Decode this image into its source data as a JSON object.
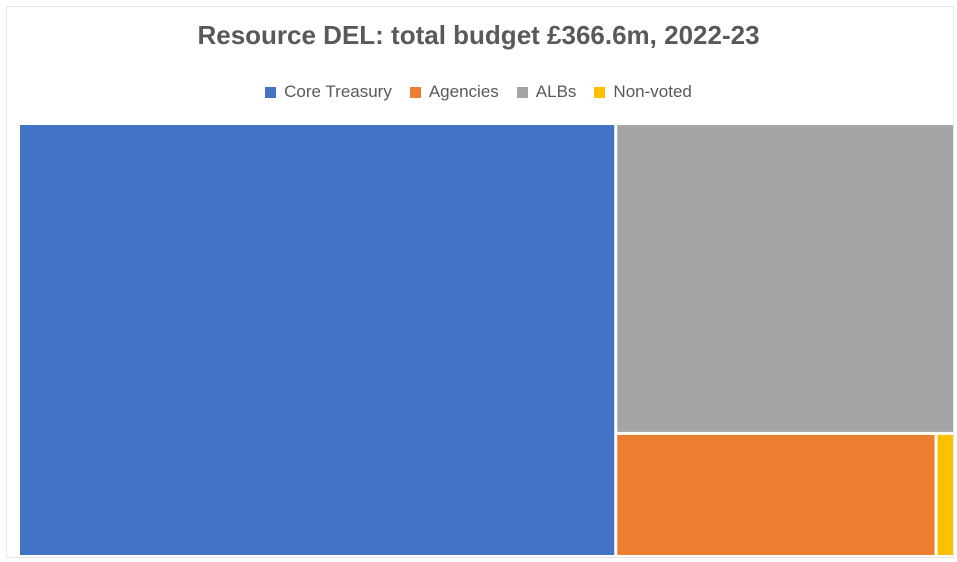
{
  "chart_data": {
    "type": "treemap",
    "title": "Resource DEL: total budget £366.6m, 2022-23",
    "legend_position": "top",
    "series": [
      {
        "name": "Core Treasury",
        "color": "#4472c4",
        "value": 233.5
      },
      {
        "name": "Agencies",
        "color": "#ed7d31",
        "value": 36.0
      },
      {
        "name": "ALBs",
        "color": "#a5a5a5",
        "value": 95.0
      },
      {
        "name": "Non-voted",
        "color": "#ffc000",
        "value": 2.1
      }
    ]
  }
}
